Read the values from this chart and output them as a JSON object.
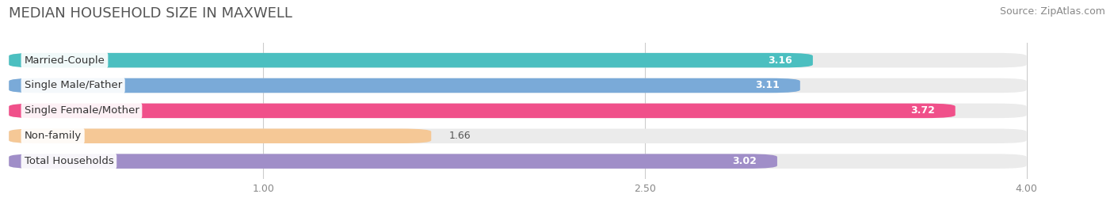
{
  "title": "MEDIAN HOUSEHOLD SIZE IN MAXWELL",
  "source": "Source: ZipAtlas.com",
  "categories": [
    "Married-Couple",
    "Single Male/Father",
    "Single Female/Mother",
    "Non-family",
    "Total Households"
  ],
  "values": [
    3.16,
    3.11,
    3.72,
    1.66,
    3.02
  ],
  "bar_colors": [
    "#4BBFC0",
    "#7AAAD8",
    "#F0508A",
    "#F5C896",
    "#A08EC8"
  ],
  "xlim_start": 0.0,
  "xlim_end": 4.3,
  "x_axis_start": 0.0,
  "xticks": [
    1.0,
    2.5,
    4.0
  ],
  "label_fontsize": 9.5,
  "value_fontsize": 9,
  "title_fontsize": 13,
  "source_fontsize": 9,
  "background_color": "#ffffff",
  "bar_bg_color": "#ebebeb",
  "bar_height": 0.58,
  "bar_gap": 1.0,
  "rounding_size": 0.12
}
